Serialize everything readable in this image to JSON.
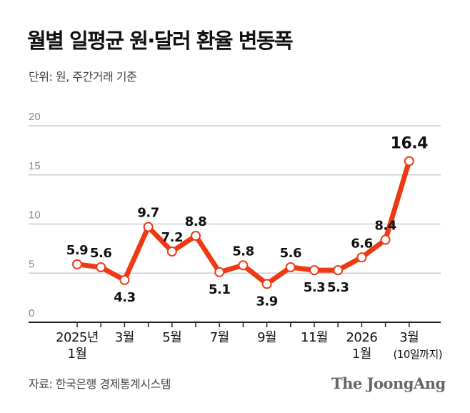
{
  "title": "월별 일평균 원·달러 환율 변동폭",
  "subtitle": "단위: 원, 주간거래 기준",
  "source": "자료: 한국은행 경제통계시스템",
  "logo": "The JoongAng",
  "colors": {
    "line": "#ee3a14",
    "grid": "#cccccc",
    "axis": "#222222"
  },
  "chart_data": {
    "type": "line",
    "x": [
      "2025-01",
      "2025-02",
      "2025-03",
      "2025-04",
      "2025-05",
      "2025-06",
      "2025-07",
      "2025-08",
      "2025-09",
      "2025-10",
      "2025-11",
      "2025-12",
      "2026-01",
      "2026-02",
      "2026-03"
    ],
    "values": [
      5.9,
      5.6,
      4.3,
      9.7,
      7.2,
      8.8,
      5.1,
      5.8,
      3.9,
      5.6,
      5.3,
      5.3,
      6.6,
      8.4,
      16.4
    ],
    "data_labels": [
      "5.9",
      "5.6",
      "4.3",
      "9.7",
      "7.2",
      "8.8",
      "5.1",
      "5.8",
      "3.9",
      "5.6",
      "5.3",
      "5.3",
      "6.6",
      "8.4",
      "16.4"
    ],
    "label_position": [
      "above",
      "above",
      "below",
      "above",
      "above",
      "above",
      "below",
      "above",
      "below",
      "above",
      "below",
      "below",
      "above",
      "above",
      "above"
    ],
    "x_tick_labels": [
      {
        "index": 0,
        "lines": [
          "2025년",
          "1월"
        ]
      },
      {
        "index": 2,
        "lines": [
          "3월"
        ]
      },
      {
        "index": 4,
        "lines": [
          "5월"
        ]
      },
      {
        "index": 6,
        "lines": [
          "7월"
        ]
      },
      {
        "index": 8,
        "lines": [
          "9월"
        ]
      },
      {
        "index": 10,
        "lines": [
          "11월"
        ]
      },
      {
        "index": 12,
        "lines": [
          "2026",
          "1월"
        ]
      },
      {
        "index": 14,
        "lines": [
          "3월",
          "(10일까지)"
        ]
      }
    ],
    "y_ticks": [
      0,
      5,
      10,
      15,
      20
    ],
    "ylim": [
      0,
      20
    ],
    "grid": true,
    "markers": "white circles"
  }
}
